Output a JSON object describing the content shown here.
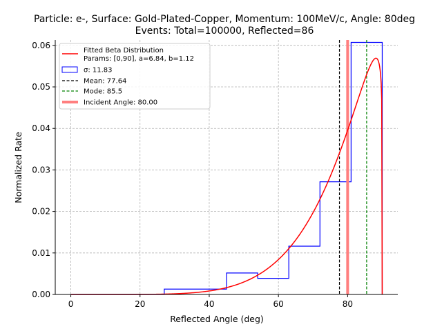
{
  "chart_data": {
    "type": "histogram",
    "title": [
      "Particle: e-, Surface: Gold-Plated-Copper, Momentum: 100MeV/c, Angle: 80deg",
      "Events: Total=100000, Reflected=86"
    ],
    "xlabel": "Reflected Angle (deg)",
    "ylabel": "Normalized Rate",
    "xlim": [
      -4.5,
      94.5
    ],
    "ylim": [
      0.0,
      0.0613
    ],
    "xticks": [
      0,
      20,
      40,
      60,
      80
    ],
    "yticks": [
      0.0,
      0.01,
      0.02,
      0.03,
      0.04,
      0.05,
      0.06
    ],
    "xtick_labels": [
      "0",
      "20",
      "40",
      "60",
      "80"
    ],
    "ytick_labels": [
      "0.00",
      "0.01",
      "0.02",
      "0.03",
      "0.04",
      "0.05",
      "0.06"
    ],
    "grid": true,
    "legend_position": "top-left",
    "histogram": {
      "bin_edges": [
        0,
        9,
        18,
        27,
        36,
        45,
        54,
        63,
        72,
        81,
        90
      ],
      "values": [
        0.0,
        0.0,
        0.0,
        0.00129,
        0.00129,
        0.00517,
        0.00388,
        0.01163,
        0.02714,
        0.06072
      ],
      "color": "#0000ff"
    },
    "fit": {
      "distribution": "beta",
      "range": [
        0,
        90
      ],
      "a": 6.84,
      "b": 1.12,
      "color": "#ff0000"
    },
    "vlines": [
      {
        "label": "Mean: 77.64",
        "x": 77.64,
        "color": "#000000",
        "style": "dashed"
      },
      {
        "label": "Mode: 85.5",
        "x": 85.5,
        "color": "#008000",
        "style": "dashed"
      },
      {
        "label": "Incident Angle: 80.00",
        "x": 80.0,
        "color": "#ff7f7f",
        "style": "solid-thick"
      }
    ],
    "legend": [
      {
        "label": "Fitted Beta Distribution",
        "label2": "Params: [0,90], a=6.84, b=1.12",
        "kind": "line",
        "color": "#ff0000"
      },
      {
        "label": "σ: 11.83",
        "kind": "box",
        "color": "#0000ff"
      },
      {
        "label": "Mean: 77.64",
        "kind": "dash",
        "color": "#000000"
      },
      {
        "label": "Mode: 85.5",
        "kind": "dash",
        "color": "#008000"
      },
      {
        "label": "Incident Angle: 80.00",
        "kind": "thick",
        "color": "#ff7f7f"
      }
    ]
  }
}
